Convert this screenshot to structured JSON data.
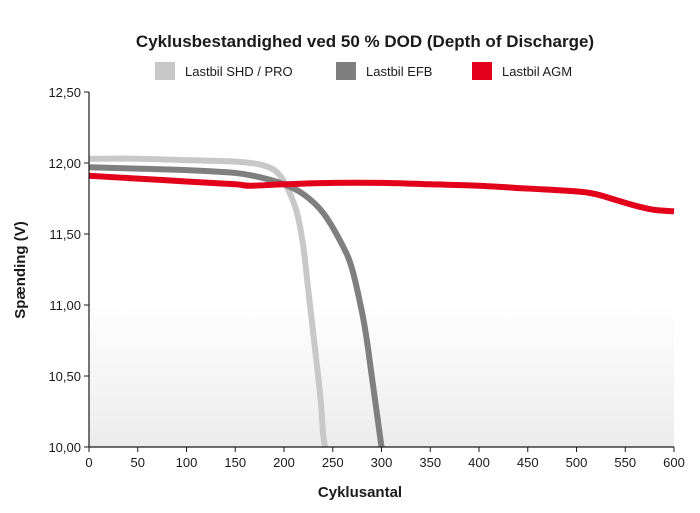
{
  "chart_data": {
    "type": "line",
    "title": "Cyklusbestandighed ved 50 % DOD (Depth of Discharge)",
    "xlabel": "Cyklusantal",
    "ylabel": "Spænding (V)",
    "xlim": [
      0,
      600
    ],
    "ylim": [
      10.0,
      12.5
    ],
    "x_ticks": [
      0,
      50,
      100,
      150,
      200,
      250,
      300,
      350,
      400,
      450,
      500,
      550,
      600
    ],
    "x_tick_labels": [
      "0",
      "50",
      "100",
      "150",
      "200",
      "250",
      "300",
      "350",
      "400",
      "450",
      "500",
      "550",
      "600"
    ],
    "y_ticks": [
      10.0,
      10.5,
      11.0,
      11.5,
      12.0,
      12.5
    ],
    "y_tick_labels": [
      "10,00",
      "10,50",
      "11,00",
      "11,50",
      "12,00",
      "12,50"
    ],
    "grid": false,
    "legend_position": "top",
    "series": [
      {
        "name": "Lastbil SHD / PRO",
        "color": "#c8c8c8",
        "x": [
          0,
          50,
          100,
          150,
          175,
          190,
          200,
          210,
          215,
          220,
          225,
          230,
          235,
          238,
          240,
          242
        ],
        "y": [
          12.03,
          12.03,
          12.02,
          12.01,
          11.99,
          11.95,
          11.87,
          11.72,
          11.6,
          11.4,
          11.1,
          10.8,
          10.5,
          10.3,
          10.1,
          10.0
        ]
      },
      {
        "name": "Lastbil EFB",
        "color": "#7f7f7f",
        "x": [
          0,
          50,
          100,
          150,
          175,
          200,
          220,
          240,
          260,
          270,
          280,
          285,
          290,
          295,
          300
        ],
        "y": [
          11.97,
          11.96,
          11.95,
          11.93,
          11.9,
          11.85,
          11.78,
          11.65,
          11.42,
          11.25,
          10.95,
          10.75,
          10.5,
          10.25,
          10.0
        ]
      },
      {
        "name": "Lastbil AGM",
        "color": "#e2001a",
        "x": [
          0,
          50,
          100,
          150,
          165,
          200,
          250,
          300,
          350,
          400,
          450,
          500,
          520,
          540,
          560,
          580,
          600
        ],
        "y": [
          11.91,
          11.89,
          11.87,
          11.85,
          11.84,
          11.85,
          11.86,
          11.86,
          11.85,
          11.84,
          11.82,
          11.8,
          11.78,
          11.74,
          11.7,
          11.67,
          11.66
        ]
      }
    ]
  }
}
